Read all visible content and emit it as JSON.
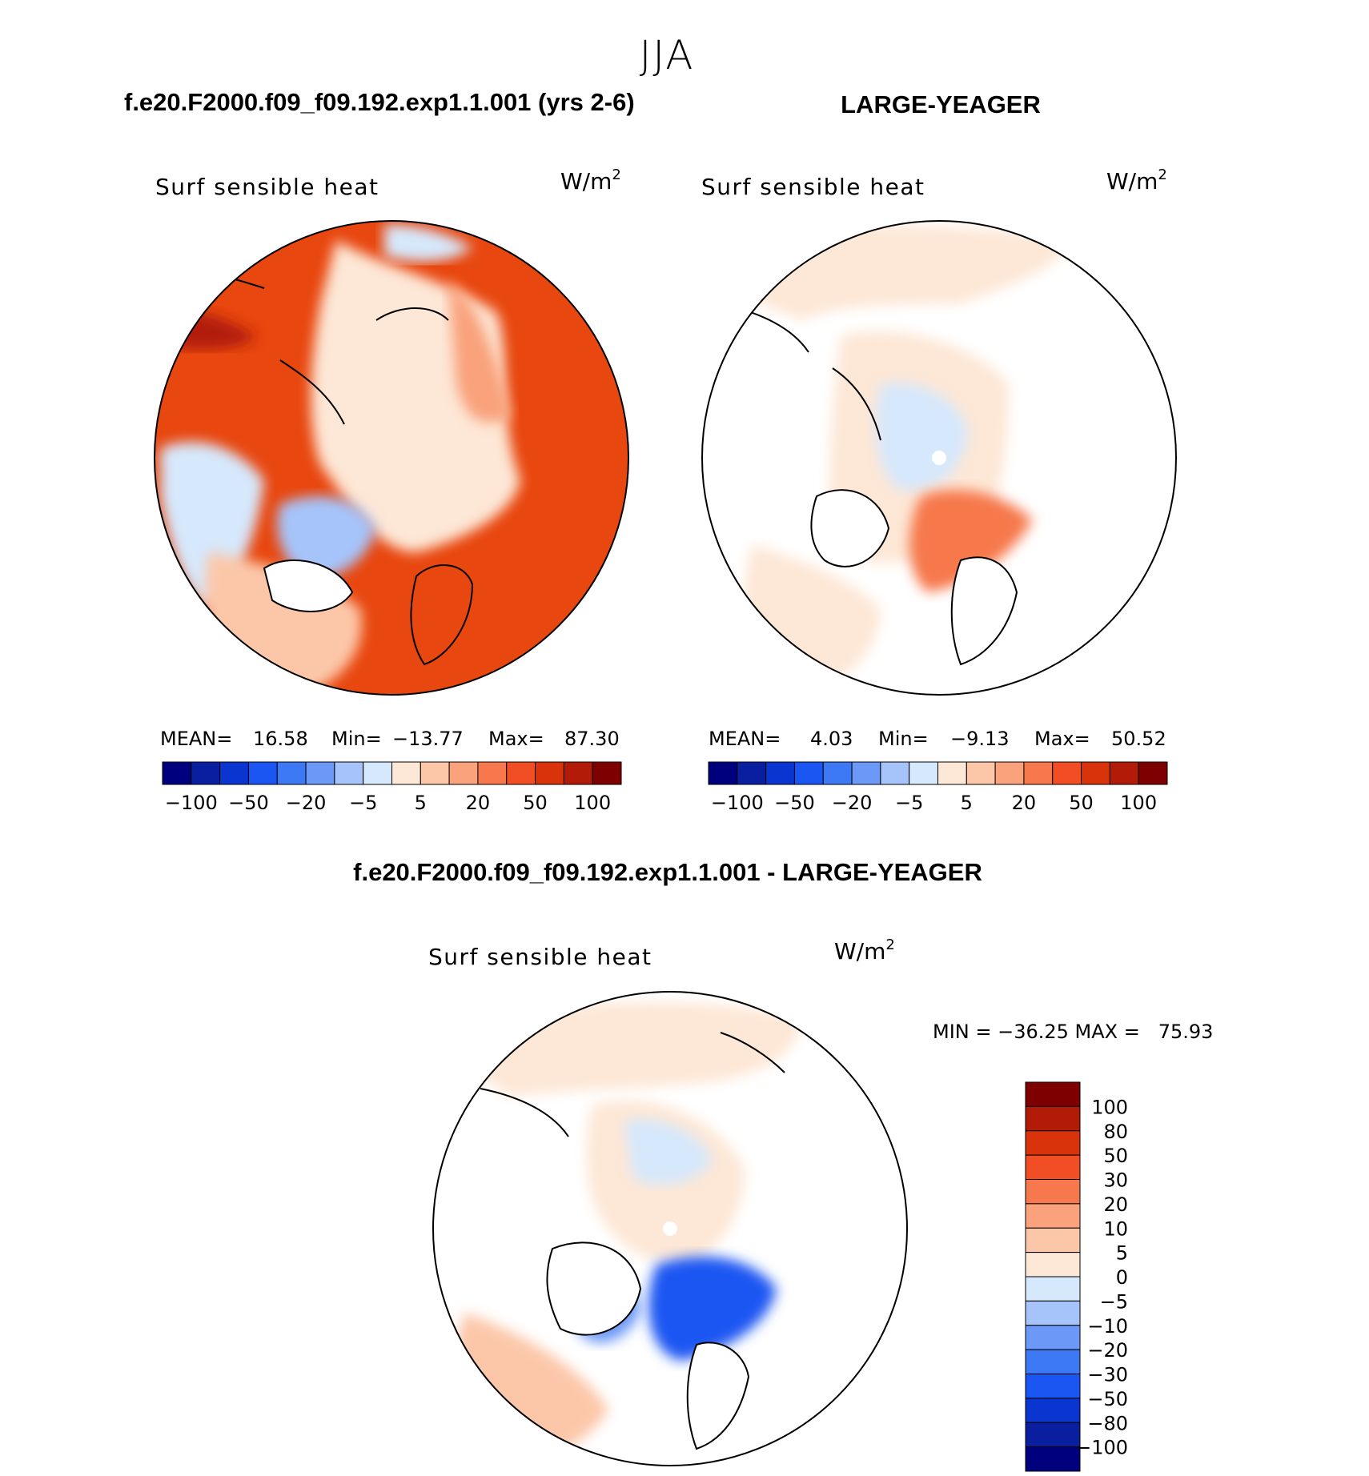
{
  "figure": {
    "title": "JJA",
    "left_title": "f.e20.F2000.f09_f09.192.exp1.1.001 (yrs 2-6)",
    "right_title": "LARGE-YEAGER",
    "diff_title": "f.e20.F2000.f09_f09.192.exp1.1.001 - LARGE-YEAGER"
  },
  "chart_data": [
    {
      "type": "heatmap",
      "projection": "polar stereographic (north)",
      "variable": "Surf sensible heat",
      "units": "W/m",
      "units_sup": "2",
      "stats": {
        "mean_label": "MEAN=",
        "mean": "16.58",
        "min_label": "Min=",
        "min": "−13.77",
        "max_label": "Max=",
        "max": "87.30"
      },
      "colorbar": {
        "orientation": "horizontal",
        "colors": [
          "#00007f",
          "#0a1fa0",
          "#0b35d0",
          "#1c56f2",
          "#3d78f5",
          "#6c98f7",
          "#a6c4fa",
          "#d6e8fc",
          "#fde7d6",
          "#fcc7a9",
          "#f9a27c",
          "#f6784c",
          "#f24e25",
          "#d9330c",
          "#b21b07",
          "#7f0000"
        ],
        "tick_labels": [
          "−100",
          "−50",
          "−20",
          "−5",
          "5",
          "20",
          "50",
          "100"
        ]
      }
    },
    {
      "type": "heatmap",
      "projection": "polar stereographic (north)",
      "variable": "Surf sensible heat",
      "units": "W/m",
      "units_sup": "2",
      "stats": {
        "mean_label": "MEAN=",
        "mean": "4.03",
        "min_label": "Min=",
        "min": "−9.13",
        "max_label": "Max=",
        "max": "50.52"
      },
      "colorbar": {
        "orientation": "horizontal",
        "colors": [
          "#00007f",
          "#0a1fa0",
          "#0b35d0",
          "#1c56f2",
          "#3d78f5",
          "#6c98f7",
          "#a6c4fa",
          "#d6e8fc",
          "#fde7d6",
          "#fcc7a9",
          "#f9a27c",
          "#f6784c",
          "#f24e25",
          "#d9330c",
          "#b21b07",
          "#7f0000"
        ],
        "tick_labels": [
          "−100",
          "−50",
          "−20",
          "−5",
          "5",
          "20",
          "50",
          "100"
        ]
      }
    },
    {
      "type": "heatmap",
      "projection": "polar stereographic (north)",
      "variable": "Surf sensible heat",
      "units": "W/m",
      "units_sup": "2",
      "stats": {
        "text": "MIN = −36.25 MAX =   75.93"
      },
      "colorbar": {
        "orientation": "vertical",
        "colors": [
          "#7f0000",
          "#b21b07",
          "#d9330c",
          "#f24e25",
          "#f6784c",
          "#f9a27c",
          "#fcc7a9",
          "#fde7d6",
          "#d6e8fc",
          "#a6c4fa",
          "#6c98f7",
          "#3d78f5",
          "#1c56f2",
          "#0b35d0",
          "#0a1fa0",
          "#00007f"
        ],
        "tick_labels": [
          "100",
          "80",
          "50",
          "30",
          "20",
          "10",
          "5",
          "0",
          "−5",
          "−10",
          "−20",
          "−30",
          "−50",
          "−80",
          "−100"
        ]
      }
    }
  ]
}
